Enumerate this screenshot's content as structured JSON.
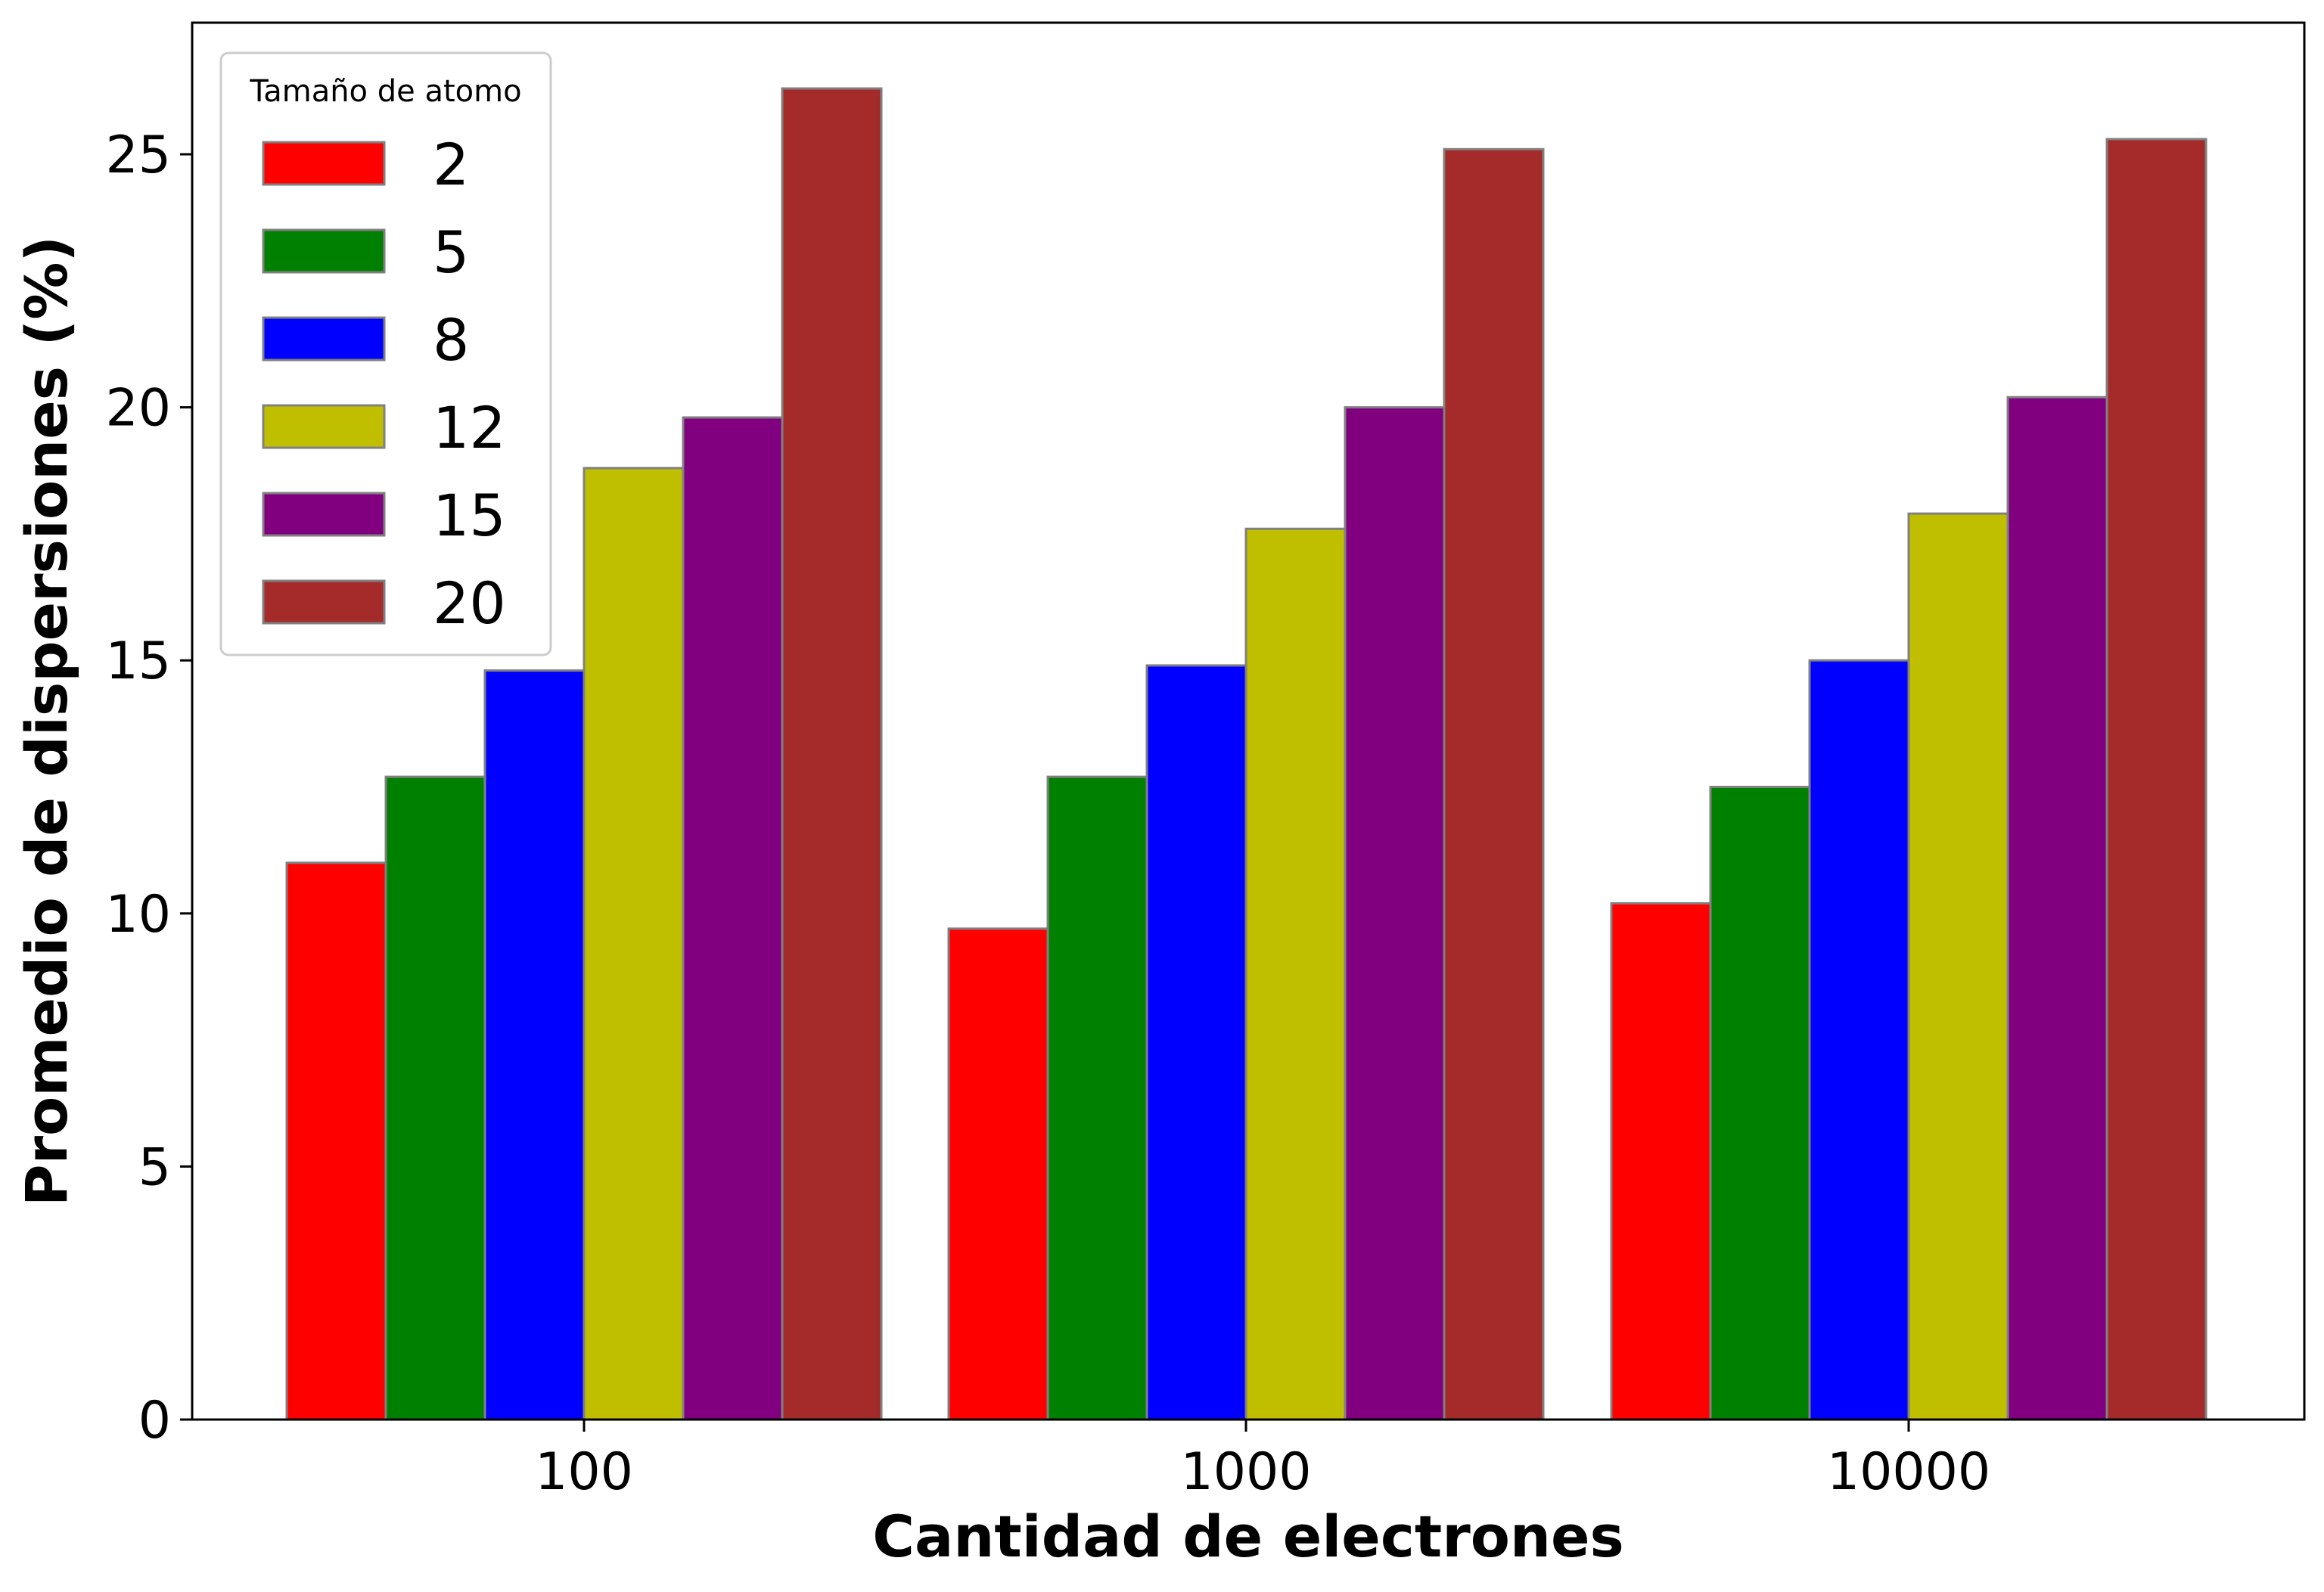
{
  "chart_data": {
    "type": "bar",
    "categories": [
      "100",
      "1000",
      "10000"
    ],
    "series": [
      {
        "name": "2",
        "values": [
          11.0,
          9.7,
          10.2
        ],
        "color": "#ff0000"
      },
      {
        "name": "5",
        "values": [
          12.7,
          12.7,
          12.5
        ],
        "color": "#008000"
      },
      {
        "name": "8",
        "values": [
          14.8,
          14.9,
          15.0
        ],
        "color": "#0000ff"
      },
      {
        "name": "12",
        "values": [
          18.8,
          17.6,
          17.9
        ],
        "color": "#bfbf00"
      },
      {
        "name": "15",
        "values": [
          19.8,
          20.0,
          20.2
        ],
        "color": "#800080"
      },
      {
        "name": "20",
        "values": [
          26.3,
          25.1,
          25.3
        ],
        "color": "#a52a2a"
      }
    ],
    "xlabel": "Cantidad de electrones",
    "ylabel": "Promedio de dispersiones (%)",
    "yticks": [
      "0",
      "5",
      "10",
      "15",
      "20",
      "25"
    ],
    "ylim": [
      0,
      27.6
    ],
    "legend": {
      "title": "Tamaño de atomo",
      "placement": "top-left"
    },
    "grid": false,
    "bar_edge_color": "#808080"
  }
}
